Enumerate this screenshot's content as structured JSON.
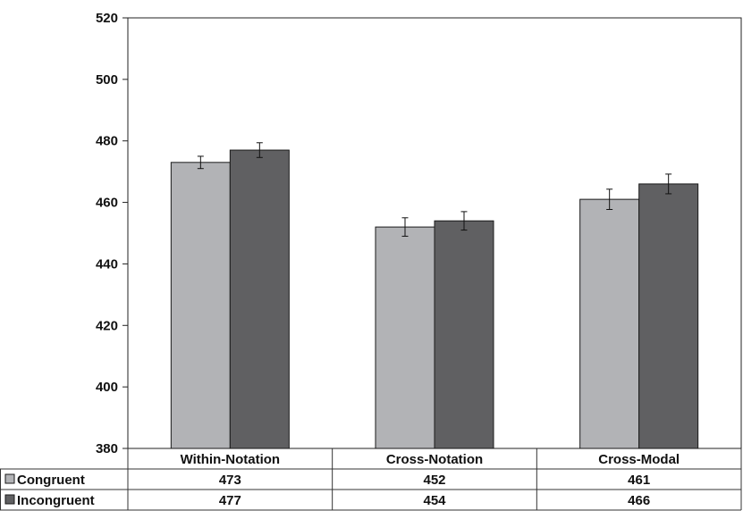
{
  "chart_data": {
    "type": "bar",
    "categories": [
      "Within-Notation",
      "Cross-Notation",
      "Cross-Modal"
    ],
    "series": [
      {
        "name": "Congruent",
        "values": [
          473,
          452,
          461
        ],
        "errors": [
          2,
          3,
          3.3
        ],
        "color": "#b2b3b6"
      },
      {
        "name": "Incongruent",
        "values": [
          477,
          454,
          466
        ],
        "errors": [
          2.4,
          3,
          3.2
        ],
        "color": "#606062"
      }
    ],
    "title": "",
    "xlabel": "",
    "ylabel": "",
    "ylim": [
      380,
      520
    ],
    "yticks": [
      380,
      400,
      420,
      440,
      460,
      480,
      500,
      520
    ],
    "grid": false,
    "legend": "data-table",
    "data_table": {
      "rows": [
        {
          "label": "Congruent",
          "cells": [
            "473",
            "452",
            "461"
          ]
        },
        {
          "label": "Incongruent",
          "cells": [
            "477",
            "454",
            "466"
          ]
        }
      ]
    }
  }
}
